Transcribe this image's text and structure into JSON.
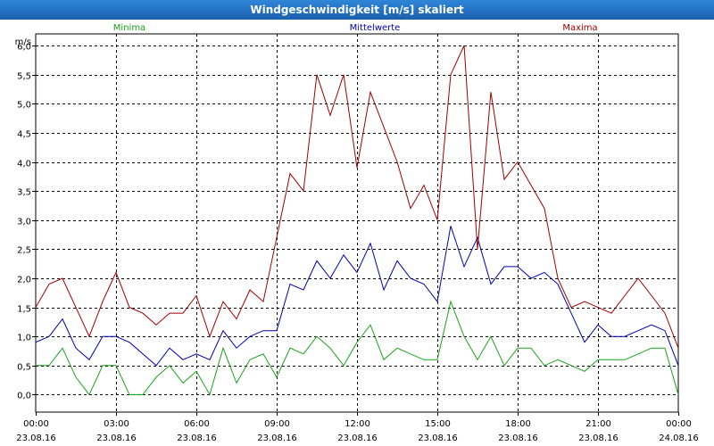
{
  "window": {
    "title": "Windgeschwindigkeit [m/s] skaliert"
  },
  "chart_data": {
    "type": "line",
    "title": "Windgeschwindigkeit [m/s] skaliert",
    "ylabel": "m/s",
    "xlabel": "",
    "ylim": [
      -0.3,
      6.2
    ],
    "yticks": [
      "0,0",
      "0,5",
      "1,0",
      "1,5",
      "2,0",
      "2,5",
      "3,0",
      "3,5",
      "4,0",
      "4,5",
      "5,0",
      "5,5",
      "6,0"
    ],
    "yticks_values": [
      0,
      0.5,
      1,
      1.5,
      2,
      2.5,
      3,
      3.5,
      4,
      4.5,
      5,
      5.5,
      6
    ],
    "xlim": [
      0,
      24
    ],
    "xticks": [
      {
        "time": "00:00",
        "date": "23.08.16"
      },
      {
        "time": "03:00",
        "date": "23.08.16"
      },
      {
        "time": "06:00",
        "date": "23.08.16"
      },
      {
        "time": "09:00",
        "date": "23.08.16"
      },
      {
        "time": "12:00",
        "date": "23.08.16"
      },
      {
        "time": "15:00",
        "date": "23.08.16"
      },
      {
        "time": "18:00",
        "date": "23.08.16"
      },
      {
        "time": "21:00",
        "date": "23.08.16"
      },
      {
        "time": "00:00",
        "date": "24.08.16"
      }
    ],
    "xticks_values": [
      0,
      3,
      6,
      9,
      12,
      15,
      18,
      21,
      24
    ],
    "grid": true,
    "series": [
      {
        "name": "Minima",
        "color": "#1aa31a",
        "x": [
          0,
          0.5,
          1,
          1.5,
          2,
          2.5,
          3,
          3.5,
          4,
          4.5,
          5,
          5.5,
          6,
          6.5,
          7,
          7.5,
          8,
          8.5,
          9,
          9.5,
          10,
          10.5,
          11,
          11.5,
          12,
          12.5,
          13,
          13.5,
          14,
          14.5,
          15,
          15.5,
          16,
          16.5,
          17,
          17.5,
          18,
          18.5,
          19,
          19.5,
          20,
          20.5,
          21,
          21.5,
          22,
          22.5,
          23,
          23.5,
          24
        ],
        "values": [
          0.5,
          0.5,
          0.8,
          0.3,
          0.0,
          0.5,
          0.5,
          0.0,
          0.0,
          0.3,
          0.5,
          0.2,
          0.4,
          0.0,
          0.8,
          0.2,
          0.6,
          0.7,
          0.3,
          0.8,
          0.7,
          1.0,
          0.8,
          0.5,
          0.9,
          1.2,
          0.6,
          0.8,
          0.7,
          0.6,
          0.6,
          1.6,
          1.0,
          0.6,
          1.0,
          0.5,
          0.8,
          0.8,
          0.5,
          0.6,
          0.5,
          0.4,
          0.6,
          0.6,
          0.6,
          0.7,
          0.8,
          0.8,
          0.0
        ]
      },
      {
        "name": "Mittelwerte",
        "color": "#0000b4",
        "x": [
          0,
          0.5,
          1,
          1.5,
          2,
          2.5,
          3,
          3.5,
          4,
          4.5,
          5,
          5.5,
          6,
          6.5,
          7,
          7.5,
          8,
          8.5,
          9,
          9.5,
          10,
          10.5,
          11,
          11.5,
          12,
          12.5,
          13,
          13.5,
          14,
          14.5,
          15,
          15.5,
          16,
          16.5,
          17,
          17.5,
          18,
          18.5,
          19,
          19.5,
          20,
          20.5,
          21,
          21.5,
          22,
          22.5,
          23,
          23.5,
          24
        ],
        "values": [
          0.9,
          1.0,
          1.3,
          0.8,
          0.6,
          1.0,
          1.0,
          0.9,
          0.7,
          0.5,
          0.8,
          0.6,
          0.7,
          0.6,
          1.1,
          0.8,
          1.0,
          1.1,
          1.1,
          1.9,
          1.8,
          2.3,
          2.0,
          2.4,
          2.1,
          2.6,
          1.8,
          2.3,
          2.0,
          1.9,
          1.6,
          2.9,
          2.2,
          2.7,
          1.9,
          2.2,
          2.2,
          2.0,
          2.1,
          1.9,
          1.4,
          0.9,
          1.2,
          1.0,
          1.0,
          1.1,
          1.2,
          1.1,
          0.5
        ]
      },
      {
        "name": "Maxima",
        "color": "#a00000",
        "x": [
          0,
          0.5,
          1,
          1.5,
          2,
          2.5,
          3,
          3.5,
          4,
          4.5,
          5,
          5.5,
          6,
          6.5,
          7,
          7.5,
          8,
          8.5,
          9,
          9.5,
          10,
          10.5,
          11,
          11.5,
          12,
          12.5,
          13,
          13.5,
          14,
          14.5,
          15,
          15.5,
          16,
          16.5,
          17,
          17.5,
          18,
          18.5,
          19,
          19.5,
          20,
          20.5,
          21,
          21.5,
          22,
          22.5,
          23,
          23.5,
          24
        ],
        "values": [
          1.5,
          1.9,
          2.0,
          1.5,
          1.0,
          1.6,
          2.1,
          1.5,
          1.4,
          1.2,
          1.4,
          1.4,
          1.7,
          1.0,
          1.6,
          1.3,
          1.8,
          1.6,
          2.7,
          3.8,
          3.5,
          5.5,
          4.8,
          5.5,
          3.9,
          5.2,
          4.6,
          4.0,
          3.2,
          3.6,
          3.0,
          5.5,
          6.0,
          2.5,
          5.2,
          3.7,
          4.0,
          3.6,
          3.2,
          2.0,
          1.5,
          1.6,
          1.5,
          1.4,
          1.7,
          2.0,
          1.7,
          1.4,
          0.8
        ]
      }
    ]
  }
}
